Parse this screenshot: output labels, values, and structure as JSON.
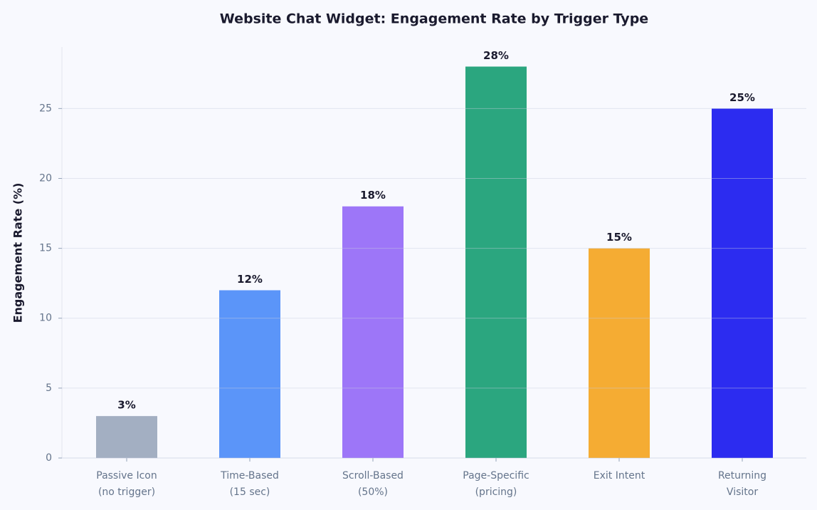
{
  "chart_data": {
    "type": "bar",
    "title": "Website Chat Widget: Engagement Rate by Trigger Type",
    "ylabel": "Engagement Rate (%)",
    "categories": [
      "Passive Icon\n(no trigger)",
      "Time-Based\n(15 sec)",
      "Scroll-Based\n(50%)",
      "Page-Specific\n(pricing)",
      "Exit Intent",
      "Returning\nVisitor"
    ],
    "values": [
      3,
      12,
      18,
      28,
      15,
      25
    ],
    "value_labels": [
      "3%",
      "12%",
      "18%",
      "28%",
      "15%",
      "25%"
    ],
    "colors": [
      "#a3afc2",
      "#5b95f9",
      "#9d76f8",
      "#2ba67f",
      "#f5ac33",
      "#2c2cf0"
    ],
    "ylim": [
      0,
      29.4
    ],
    "yticks": [
      0,
      5,
      10,
      15,
      20,
      25
    ],
    "grid": true
  }
}
